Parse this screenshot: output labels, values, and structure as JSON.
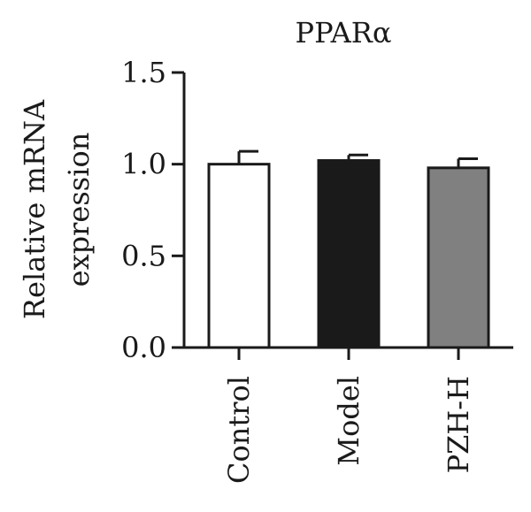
{
  "chart_data": {
    "type": "bar",
    "title": "PPARα",
    "ylabel_lines": [
      "Relative mRNA",
      "expression"
    ],
    "xlabel": "",
    "categories": [
      "Control",
      "Model",
      "PZH-H"
    ],
    "values": [
      1.0,
      1.02,
      0.98
    ],
    "errors": [
      0.07,
      0.03,
      0.05
    ],
    "bar_colors": [
      "#ffffff",
      "#1a1a1a",
      "#808080"
    ],
    "ylim": [
      0,
      1.5
    ],
    "yticks": [
      "0.0",
      "0.5",
      "1.0",
      "1.5"
    ],
    "grid": false,
    "legend": false
  }
}
